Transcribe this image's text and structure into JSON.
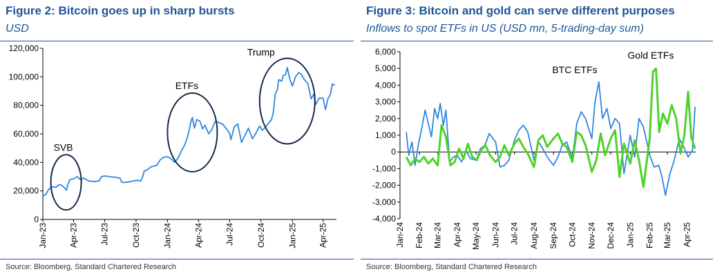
{
  "figures": [
    {
      "title": "Figure 2: Bitcoin goes up in sharp bursts",
      "subtitle": "USD",
      "source": "Source: Bloomberg, Standard Chartered Research"
    },
    {
      "title": "Figure 3: Bitcoin and gold can serve different purposes",
      "subtitle": "Inflows to spot ETFs in US (USD mn, 5-trading-day sum)",
      "source": "Source: Bloomberg, Standard Chartered Research"
    }
  ],
  "colors": {
    "bitcoin": "#2e86de",
    "gold": "#4fd12a",
    "title": "#1f5596",
    "axis": "#000000"
  },
  "chart_data": [
    {
      "type": "line",
      "title": "Figure 2: Bitcoin goes up in sharp bursts",
      "ylabel": "USD",
      "xlabel": "",
      "ylim": [
        0,
        120000
      ],
      "xlim": [
        "2023-01-01",
        "2025-05-10"
      ],
      "yticks": [
        0,
        20000,
        40000,
        60000,
        80000,
        100000,
        120000
      ],
      "ytick_labels": [
        "0",
        "20,000",
        "40,000",
        "60,000",
        "80,000",
        "100,000",
        "120,000"
      ],
      "xticks": [
        "2023-01-01",
        "2023-04-01",
        "2023-07-01",
        "2023-10-01",
        "2024-01-01",
        "2024-04-01",
        "2024-07-01",
        "2024-10-01",
        "2025-01-01",
        "2025-04-01"
      ],
      "xtick_labels": [
        "Jan-23",
        "Apr-23",
        "Jul-23",
        "Oct-23",
        "Jan-24",
        "Apr-24",
        "Jul-24",
        "Oct-24",
        "Jan-25",
        "Apr-25"
      ],
      "grid": false,
      "series": [
        {
          "color": "#2e86de",
          "x": [
            "2023-01-01",
            "2023-01-10",
            "2023-01-18",
            "2023-01-28",
            "2023-02-08",
            "2023-02-18",
            "2023-02-28",
            "2023-03-08",
            "2023-03-11",
            "2023-03-16",
            "2023-03-22",
            "2023-04-01",
            "2023-04-12",
            "2023-04-20",
            "2023-05-01",
            "2023-05-15",
            "2023-06-01",
            "2023-06-15",
            "2023-06-22",
            "2023-07-01",
            "2023-07-15",
            "2023-08-01",
            "2023-08-15",
            "2023-08-20",
            "2023-09-01",
            "2023-09-15",
            "2023-10-01",
            "2023-10-15",
            "2023-10-20",
            "2023-10-25",
            "2023-11-01",
            "2023-11-15",
            "2023-12-01",
            "2023-12-10",
            "2023-12-20",
            "2024-01-01",
            "2024-01-12",
            "2024-01-22",
            "2024-02-01",
            "2024-02-10",
            "2024-02-20",
            "2024-02-28",
            "2024-03-05",
            "2024-03-10",
            "2024-03-14",
            "2024-03-20",
            "2024-03-27",
            "2024-04-05",
            "2024-04-13",
            "2024-04-20",
            "2024-05-01",
            "2024-05-10",
            "2024-05-20",
            "2024-05-30",
            "2024-06-10",
            "2024-06-20",
            "2024-07-01",
            "2024-07-05",
            "2024-07-15",
            "2024-07-25",
            "2024-08-05",
            "2024-08-15",
            "2024-08-25",
            "2024-09-06",
            "2024-09-15",
            "2024-09-27",
            "2024-10-05",
            "2024-10-15",
            "2024-10-25",
            "2024-11-01",
            "2024-11-06",
            "2024-11-12",
            "2024-11-18",
            "2024-11-22",
            "2024-12-01",
            "2024-12-05",
            "2024-12-12",
            "2024-12-17",
            "2024-12-25",
            "2025-01-01",
            "2025-01-10",
            "2025-01-20",
            "2025-01-28",
            "2025-02-05",
            "2025-02-15",
            "2025-02-25",
            "2025-03-05",
            "2025-03-10",
            "2025-03-20",
            "2025-04-01",
            "2025-04-08",
            "2025-04-15",
            "2025-04-22",
            "2025-04-28",
            "2025-05-05"
          ],
          "y": [
            16500,
            17500,
            21000,
            23000,
            22500,
            24500,
            23500,
            21500,
            20500,
            25000,
            28000,
            28500,
            30000,
            28000,
            29000,
            27000,
            26500,
            27000,
            30000,
            30500,
            30000,
            29500,
            29000,
            26000,
            26000,
            26500,
            27500,
            27000,
            29500,
            34000,
            34500,
            37000,
            38000,
            41500,
            43500,
            44000,
            42500,
            40000,
            43000,
            47500,
            52000,
            57000,
            63000,
            69000,
            71500,
            64000,
            70000,
            69000,
            63500,
            66000,
            60000,
            63000,
            69000,
            68000,
            67000,
            64000,
            60500,
            56000,
            65000,
            67000,
            54000,
            59000,
            64000,
            56500,
            60000,
            65500,
            62500,
            65000,
            68000,
            70000,
            75000,
            88000,
            91000,
            98000,
            97000,
            101000,
            101500,
            106500,
            98000,
            93500,
            100000,
            103000,
            101500,
            98000,
            95500,
            84500,
            88000,
            80500,
            85000,
            85000,
            77000,
            84500,
            87500,
            95000,
            94000
          ]
        }
      ],
      "annotations": [
        {
          "label": "SVB",
          "date": "2023-03-10"
        },
        {
          "label": "ETFs",
          "date": "2024-03-14"
        },
        {
          "label": "Trump",
          "date": "2024-12-17"
        }
      ]
    },
    {
      "type": "line",
      "title": "Figure 3: Bitcoin and gold can serve different purposes",
      "ylabel": "USD mn, 5-trading-day sum",
      "xlabel": "",
      "ylim": [
        -4000,
        6000
      ],
      "xlim": [
        "2024-01-01",
        "2025-04-15"
      ],
      "yticks": [
        -4000,
        -3000,
        -2000,
        -1000,
        0,
        1000,
        2000,
        3000,
        4000,
        5000,
        6000
      ],
      "ytick_labels": [
        "-4,000",
        "-3,000",
        "-2,000",
        "-1,000",
        "0",
        "1,000",
        "2,000",
        "3,000",
        "4,000",
        "5,000",
        "6,000"
      ],
      "xticks": [
        "2024-01-01",
        "2024-02-01",
        "2024-03-01",
        "2024-04-01",
        "2024-05-01",
        "2024-06-01",
        "2024-07-01",
        "2024-08-01",
        "2024-09-01",
        "2024-10-01",
        "2024-11-01",
        "2024-12-01",
        "2025-01-01",
        "2025-02-01",
        "2025-03-01",
        "2025-04-01"
      ],
      "xtick_labels": [
        "Jan-24",
        "Feb-24",
        "Mar-24",
        "Apr-24",
        "May-24",
        "Jun-24",
        "Jul-24",
        "Aug-24",
        "Sep-24",
        "Oct-24",
        "Nov-24",
        "Dec-24",
        "Jan-25",
        "Feb-25",
        "Mar-25",
        "Apr-25"
      ],
      "grid": false,
      "series": [
        {
          "name": "BTC ETFs",
          "color": "#2e86de",
          "x": [
            "2024-01-11",
            "2024-01-15",
            "2024-01-20",
            "2024-01-25",
            "2024-01-30",
            "2024-02-05",
            "2024-02-10",
            "2024-02-15",
            "2024-02-20",
            "2024-02-25",
            "2024-03-01",
            "2024-03-05",
            "2024-03-10",
            "2024-03-14",
            "2024-03-20",
            "2024-03-26",
            "2024-04-01",
            "2024-04-08",
            "2024-04-15",
            "2024-04-22",
            "2024-05-01",
            "2024-05-08",
            "2024-05-15",
            "2024-05-22",
            "2024-06-01",
            "2024-06-08",
            "2024-06-15",
            "2024-06-22",
            "2024-07-01",
            "2024-07-08",
            "2024-07-15",
            "2024-07-22",
            "2024-08-01",
            "2024-08-08",
            "2024-08-15",
            "2024-08-22",
            "2024-09-01",
            "2024-09-08",
            "2024-09-15",
            "2024-09-22",
            "2024-10-01",
            "2024-10-08",
            "2024-10-15",
            "2024-10-22",
            "2024-11-01",
            "2024-11-06",
            "2024-11-12",
            "2024-11-18",
            "2024-11-25",
            "2024-12-01",
            "2024-12-08",
            "2024-12-15",
            "2024-12-22",
            "2025-01-01",
            "2025-01-08",
            "2025-01-15",
            "2025-01-22",
            "2025-02-01",
            "2025-02-08",
            "2025-02-15",
            "2025-02-20",
            "2025-02-26",
            "2025-03-05",
            "2025-03-12",
            "2025-03-20",
            "2025-03-27",
            "2025-04-03",
            "2025-04-10",
            "2025-04-14"
          ],
          "values": [
            1200,
            -200,
            600,
            -800,
            400,
            1500,
            2500,
            1700,
            900,
            2600,
            2000,
            2900,
            1600,
            2500,
            -600,
            -300,
            -200,
            -600,
            100,
            -400,
            -500,
            200,
            400,
            1100,
            600,
            -900,
            -800,
            -500,
            700,
            1300,
            1600,
            1200,
            -500,
            600,
            200,
            -300,
            -800,
            -300,
            400,
            600,
            -400,
            1700,
            2400,
            2000,
            800,
            3000,
            4200,
            2000,
            2600,
            1400,
            2000,
            1700,
            -1300,
            1000,
            -300,
            2000,
            1500,
            -200,
            -900,
            -800,
            -1400,
            -2600,
            -1300,
            -500,
            800,
            300,
            -300,
            100,
            2700
          ]
        },
        {
          "name": "Gold ETFs",
          "color": "#4fd12a",
          "x": [
            "2024-01-11",
            "2024-01-18",
            "2024-01-25",
            "2024-02-01",
            "2024-02-08",
            "2024-02-15",
            "2024-02-22",
            "2024-03-01",
            "2024-03-07",
            "2024-03-14",
            "2024-03-21",
            "2024-03-28",
            "2024-04-04",
            "2024-04-11",
            "2024-04-18",
            "2024-04-25",
            "2024-05-02",
            "2024-05-09",
            "2024-05-16",
            "2024-05-23",
            "2024-06-01",
            "2024-06-08",
            "2024-06-15",
            "2024-06-22",
            "2024-07-01",
            "2024-07-08",
            "2024-07-15",
            "2024-07-22",
            "2024-08-01",
            "2024-08-08",
            "2024-08-15",
            "2024-08-22",
            "2024-09-01",
            "2024-09-08",
            "2024-09-15",
            "2024-09-22",
            "2024-10-01",
            "2024-10-08",
            "2024-10-15",
            "2024-10-22",
            "2024-11-01",
            "2024-11-08",
            "2024-11-15",
            "2024-11-22",
            "2024-12-01",
            "2024-12-08",
            "2024-12-15",
            "2024-12-22",
            "2025-01-01",
            "2025-01-08",
            "2025-01-15",
            "2025-01-22",
            "2025-02-01",
            "2025-02-06",
            "2025-02-11",
            "2025-02-16",
            "2025-02-22",
            "2025-03-01",
            "2025-03-08",
            "2025-03-15",
            "2025-03-22",
            "2025-03-28",
            "2025-04-03",
            "2025-04-08",
            "2025-04-14"
          ],
          "values": [
            -300,
            -800,
            -400,
            -600,
            -300,
            -700,
            -400,
            -800,
            1600,
            900,
            -800,
            -600,
            200,
            -400,
            500,
            -300,
            -500,
            100,
            400,
            -200,
            -600,
            -300,
            400,
            -200,
            500,
            800,
            300,
            -100,
            -900,
            700,
            1000,
            300,
            800,
            1100,
            500,
            300,
            -600,
            1200,
            1000,
            400,
            -1200,
            -500,
            1100,
            -200,
            800,
            1300,
            -1500,
            500,
            -700,
            700,
            -500,
            -2100,
            800,
            4800,
            5000,
            1200,
            2300,
            1700,
            2800,
            2000,
            -100,
            1000,
            3600,
            900,
            200
          ]
        }
      ],
      "series_labels": [
        {
          "label": "BTC ETFs",
          "series": "BTC ETFs"
        },
        {
          "label": "Gold ETFs",
          "series": "Gold ETFs"
        }
      ]
    }
  ]
}
